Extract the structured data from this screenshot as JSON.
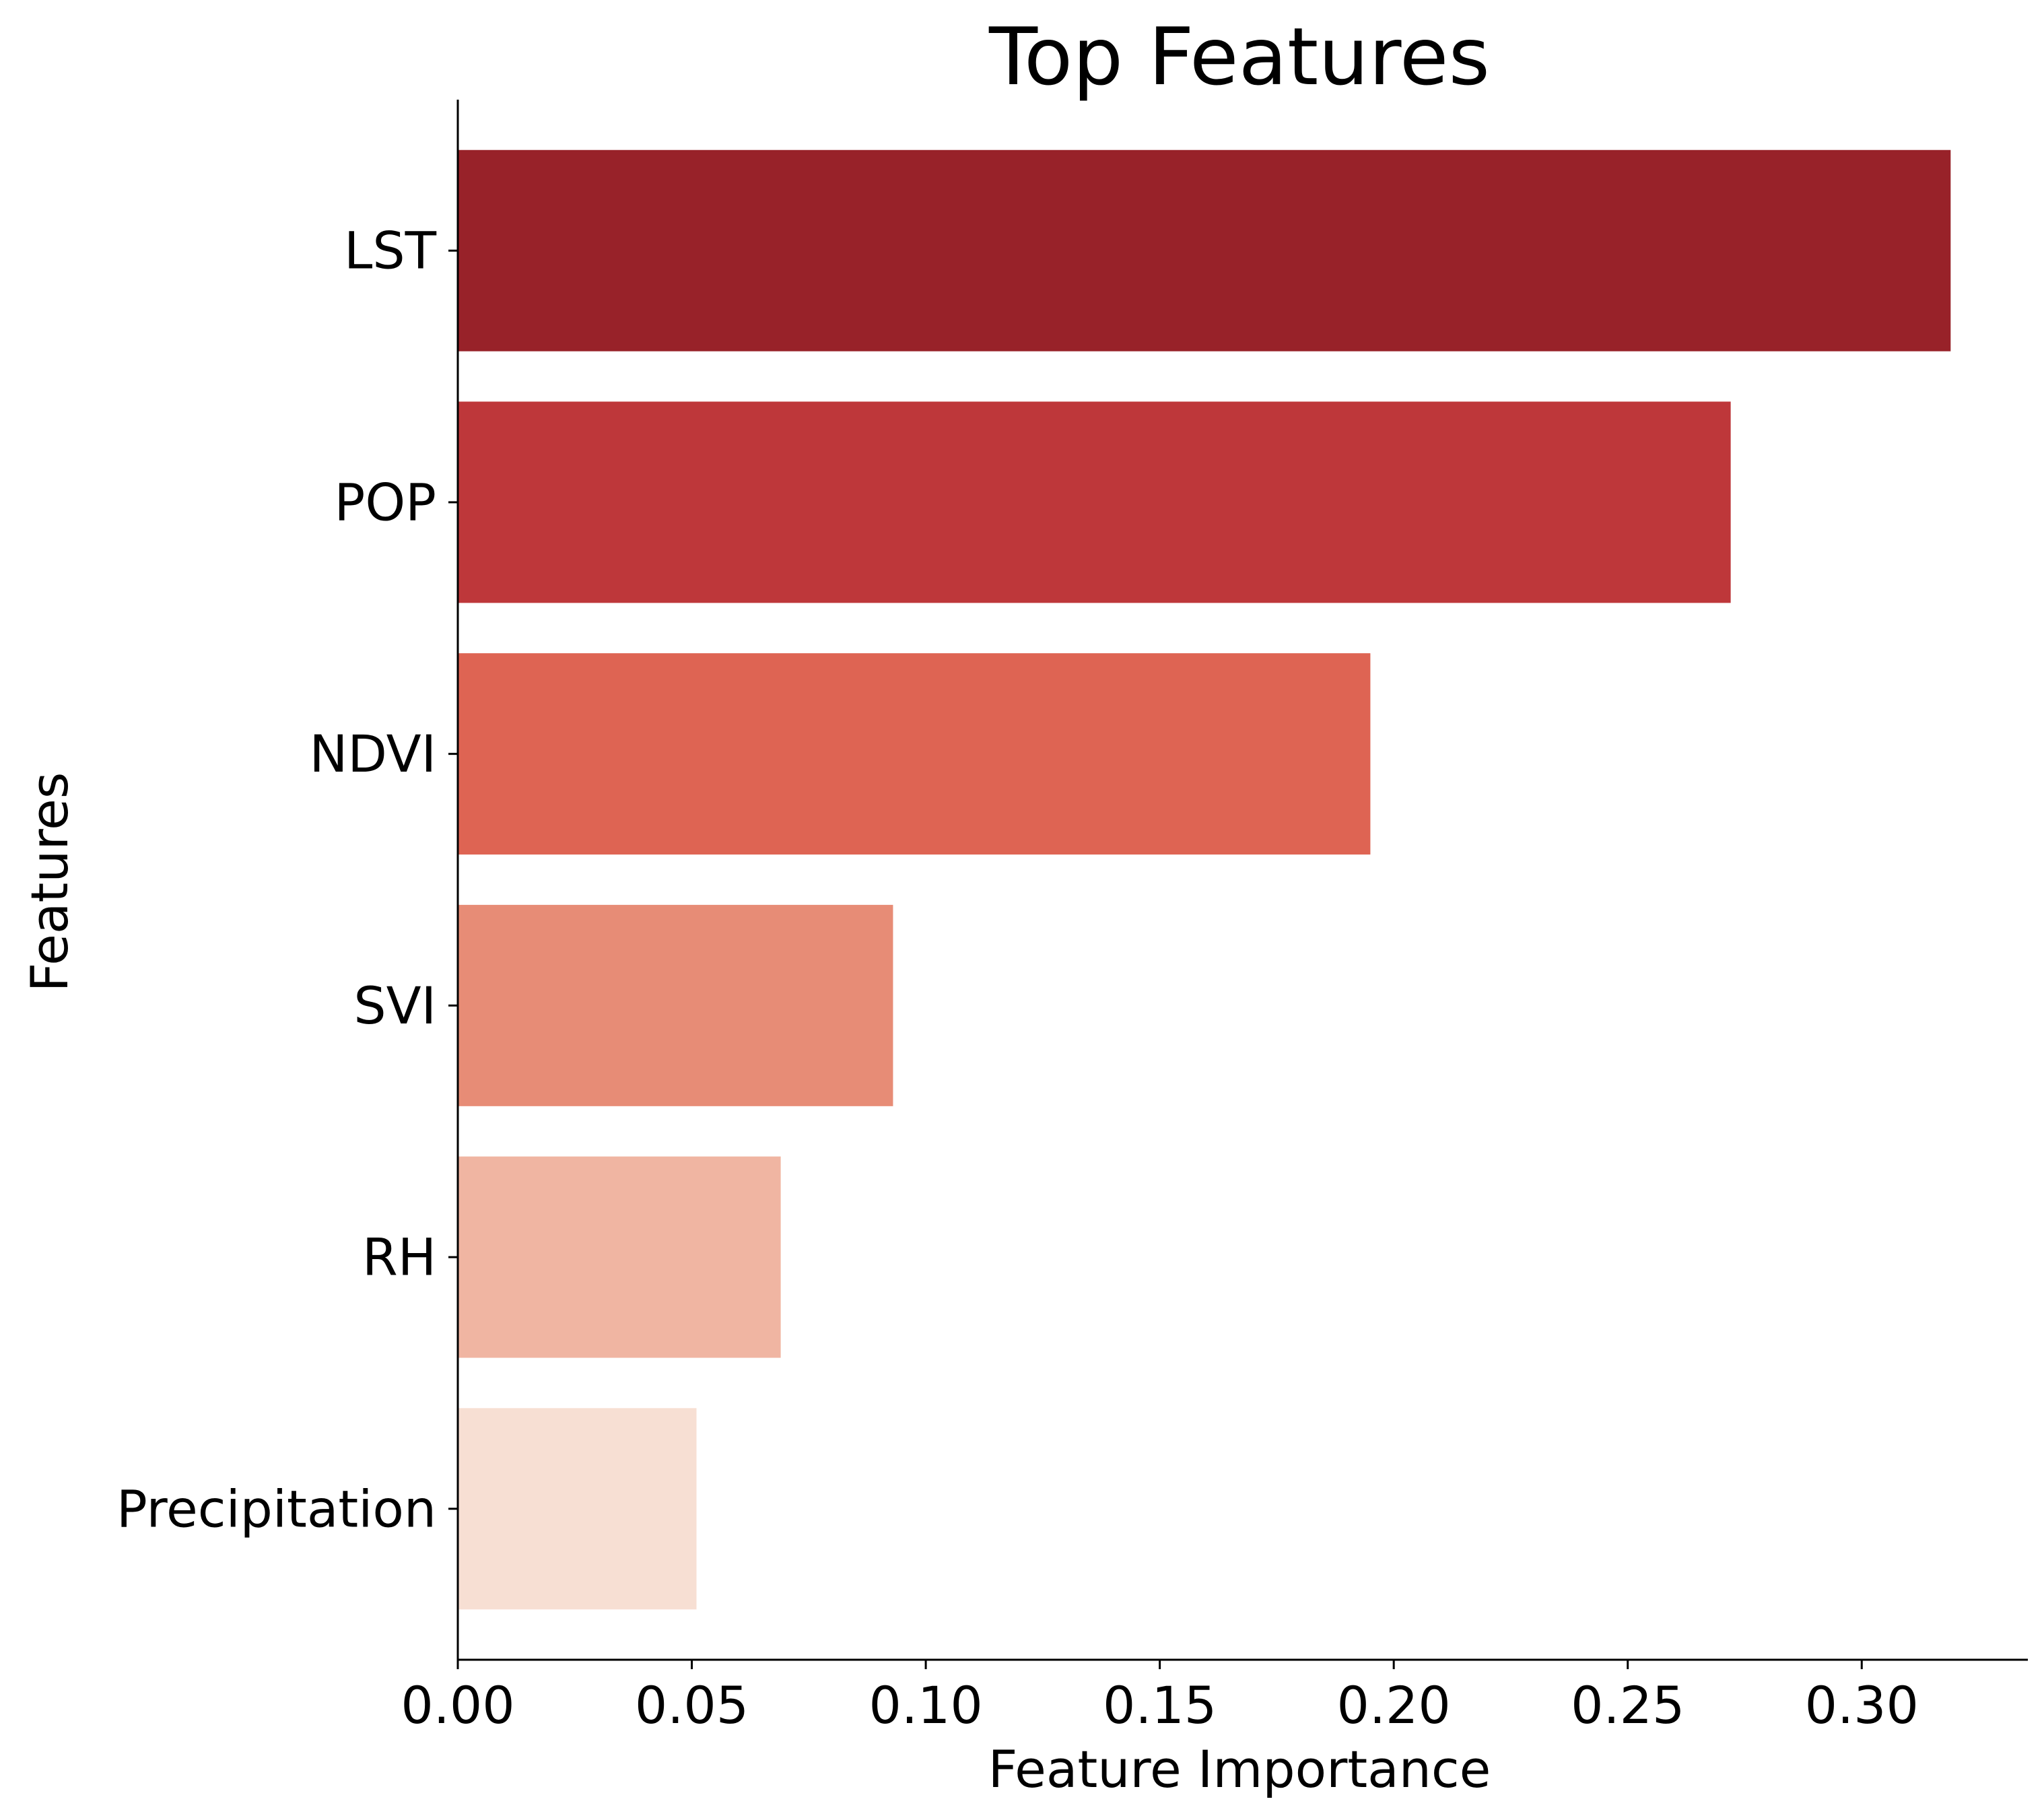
{
  "chart_data": {
    "type": "bar",
    "orientation": "horizontal",
    "title": "Top Features",
    "xlabel": "Feature Importance",
    "ylabel": "Features",
    "categories": [
      "LST",
      "POP",
      "NDVI",
      "SVI",
      "RH",
      "Precipitation"
    ],
    "values": [
      0.319,
      0.272,
      0.195,
      0.093,
      0.069,
      0.051
    ],
    "colors": [
      "#982229",
      "#be373a",
      "#de6453",
      "#e78c76",
      "#f0b5a2",
      "#f7dfd3"
    ],
    "xlim": [
      0,
      0.3355
    ],
    "xticks": [
      0.0,
      0.05,
      0.1,
      0.15,
      0.2,
      0.25,
      0.3
    ],
    "xtick_labels": [
      "0.00",
      "0.05",
      "0.10",
      "0.15",
      "0.20",
      "0.25",
      "0.30"
    ],
    "grid": false,
    "legend": "none"
  }
}
